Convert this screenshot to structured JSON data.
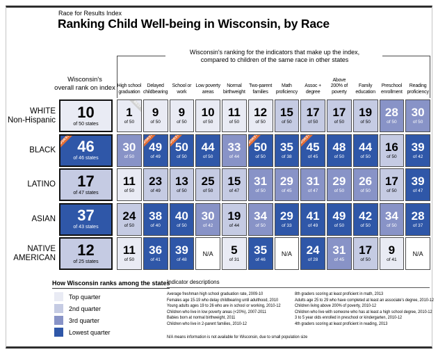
{
  "header": {
    "kicker": "Race for Results Index",
    "title": "Ranking Child Well-being in Wisconsin, by Race"
  },
  "subtitle": {
    "line1": "Wisconsin's ranking for the indicators that make up the index,",
    "line2": "compared to children of the same race in other states"
  },
  "chart_data": {
    "type": "heatmap",
    "title": "Ranking Child Well-being in Wisconsin, by Race",
    "overall_header_line1": "Wisconsin's",
    "overall_header_line2": "overall rank on index",
    "quarter_colors": {
      "top": "#e9ebf4",
      "second": "#c5cbe3",
      "third": "#8893c7",
      "lowest": "#2f57a8"
    },
    "columns": [
      "High school graduation",
      "Delayed childbearing",
      "School or work",
      "Low poverty areas",
      "Normal birthweight",
      "Two-parent families",
      "Math proficiency",
      "Assoc + degree",
      "Above 200% of poverty",
      "Family education",
      "Preschool enrollment",
      "Reading proficiency"
    ],
    "rows": [
      {
        "label": "WHITE\nNon-Hispanic",
        "overall": {
          "rank": "10",
          "of": "of 50 states",
          "quarter": "top"
        },
        "cells": [
          {
            "rank": "1",
            "of": "of 50",
            "quarter": "top",
            "ribbon": "BEST"
          },
          {
            "rank": "9",
            "of": "of 50",
            "quarter": "top"
          },
          {
            "rank": "9",
            "of": "of 50",
            "quarter": "top"
          },
          {
            "rank": "10",
            "of": "of 50",
            "quarter": "top"
          },
          {
            "rank": "11",
            "of": "of 50",
            "quarter": "top"
          },
          {
            "rank": "12",
            "of": "of 50",
            "quarter": "top"
          },
          {
            "rank": "15",
            "of": "of 50",
            "quarter": "second"
          },
          {
            "rank": "17",
            "of": "of 50",
            "quarter": "second"
          },
          {
            "rank": "17",
            "of": "of 50",
            "quarter": "second"
          },
          {
            "rank": "19",
            "of": "of 50",
            "quarter": "second"
          },
          {
            "rank": "28",
            "of": "of 50",
            "quarter": "third"
          },
          {
            "rank": "30",
            "of": "of 50",
            "quarter": "third"
          }
        ]
      },
      {
        "label": "BLACK",
        "overall": {
          "rank": "46",
          "of": "of 46 states",
          "quarter": "lowest",
          "ribbon": "WORST"
        },
        "cells": [
          {
            "rank": "30",
            "of": "of 50",
            "quarter": "third"
          },
          {
            "rank": "49",
            "of": "of 49",
            "quarter": "lowest",
            "ribbon": "WORST"
          },
          {
            "rank": "50",
            "of": "of 50",
            "quarter": "lowest",
            "ribbon": "WORST"
          },
          {
            "rank": "44",
            "of": "of 50",
            "quarter": "lowest"
          },
          {
            "rank": "33",
            "of": "of 44",
            "quarter": "third"
          },
          {
            "rank": "50",
            "of": "of 50",
            "quarter": "lowest",
            "ribbon": "WORST"
          },
          {
            "rank": "35",
            "of": "of 38",
            "quarter": "lowest"
          },
          {
            "rank": "45",
            "of": "of 45",
            "quarter": "lowest",
            "ribbon": "WORST"
          },
          {
            "rank": "48",
            "of": "of 50",
            "quarter": "lowest"
          },
          {
            "rank": "44",
            "of": "of 50",
            "quarter": "lowest"
          },
          {
            "rank": "16",
            "of": "of 50",
            "quarter": "second"
          },
          {
            "rank": "39",
            "of": "of 42",
            "quarter": "lowest"
          }
        ]
      },
      {
        "label": "LATINO",
        "overall": {
          "rank": "17",
          "of": "of 47 states",
          "quarter": "second"
        },
        "cells": [
          {
            "rank": "11",
            "of": "of 50",
            "quarter": "top"
          },
          {
            "rank": "23",
            "of": "of 49",
            "quarter": "second"
          },
          {
            "rank": "13",
            "of": "of 50",
            "quarter": "second"
          },
          {
            "rank": "25",
            "of": "of 50",
            "quarter": "second"
          },
          {
            "rank": "15",
            "of": "of 47",
            "quarter": "second"
          },
          {
            "rank": "31",
            "of": "of 50",
            "quarter": "third"
          },
          {
            "rank": "29",
            "of": "of 45",
            "quarter": "third"
          },
          {
            "rank": "31",
            "of": "of 47",
            "quarter": "third"
          },
          {
            "rank": "29",
            "of": "of 50",
            "quarter": "third"
          },
          {
            "rank": "26",
            "of": "of 50",
            "quarter": "third"
          },
          {
            "rank": "17",
            "of": "of 50",
            "quarter": "second"
          },
          {
            "rank": "39",
            "of": "of 47",
            "quarter": "lowest"
          }
        ]
      },
      {
        "label": "ASIAN",
        "overall": {
          "rank": "37",
          "of": "of 43 states",
          "quarter": "lowest"
        },
        "cells": [
          {
            "rank": "24",
            "of": "of 50",
            "quarter": "second"
          },
          {
            "rank": "38",
            "of": "of 40",
            "quarter": "lowest"
          },
          {
            "rank": "40",
            "of": "of 50",
            "quarter": "lowest"
          },
          {
            "rank": "30",
            "of": "of 42",
            "quarter": "third"
          },
          {
            "rank": "19",
            "of": "of 44",
            "quarter": "second"
          },
          {
            "rank": "34",
            "of": "of 50",
            "quarter": "third"
          },
          {
            "rank": "29",
            "of": "of 33",
            "quarter": "lowest"
          },
          {
            "rank": "41",
            "of": "of 49",
            "quarter": "lowest"
          },
          {
            "rank": "49",
            "of": "of 50",
            "quarter": "lowest"
          },
          {
            "rank": "42",
            "of": "of 50",
            "quarter": "lowest"
          },
          {
            "rank": "34",
            "of": "of 50",
            "quarter": "third"
          },
          {
            "rank": "28",
            "of": "of 37",
            "quarter": "lowest"
          }
        ]
      },
      {
        "label": "NATIVE\nAMERICAN",
        "overall": {
          "rank": "12",
          "of": "of 25 states",
          "quarter": "second"
        },
        "cells": [
          {
            "rank": "11",
            "of": "of 50",
            "quarter": "top"
          },
          {
            "rank": "36",
            "of": "of 41",
            "quarter": "lowest"
          },
          {
            "rank": "39",
            "of": "of 48",
            "quarter": "lowest"
          },
          {
            "rank": "N/A",
            "quarter": "na"
          },
          {
            "rank": "5",
            "of": "of 31",
            "quarter": "top"
          },
          {
            "rank": "35",
            "of": "of 46",
            "quarter": "lowest"
          },
          {
            "rank": "N/A",
            "quarter": "na"
          },
          {
            "rank": "24",
            "of": "of 28",
            "quarter": "lowest"
          },
          {
            "rank": "31",
            "of": "of 45",
            "quarter": "third"
          },
          {
            "rank": "17",
            "of": "of 50",
            "quarter": "second"
          },
          {
            "rank": "9",
            "of": "of 41",
            "quarter": "top"
          },
          {
            "rank": "N/A",
            "quarter": "na"
          }
        ]
      }
    ]
  },
  "legend": {
    "heading": "How Wisconsin ranks among the states",
    "items": [
      {
        "label": "Top quarter",
        "color": "#e9ebf4"
      },
      {
        "label": "2nd quarter",
        "color": "#c5cbe3"
      },
      {
        "label": "3rd quarter",
        "color": "#8893c7"
      },
      {
        "label": "Lowest quarter",
        "color": "#2f57a8"
      }
    ]
  },
  "descriptions": {
    "heading": "Indicator descriptions",
    "col1": [
      "Average freshman high school graduation rate, 2009-10",
      "Females age 15-19 who delay childbearing until adulthood, 2010",
      "Young adults ages 19 to 26 who are in school or working, 2010-12",
      "Children who live in low poverty areas (<20%), 2007-2011",
      "Babies born at normal birthweight, 2011",
      "Children who live in 2-parent families, 2010-12"
    ],
    "col2": [
      "8th graders scoring at least proficient in math, 2013",
      "Adults age 25 to 29 who have completed at least an associate's degree, 2010-12",
      "Children living above 200% of poverty, 2010-12",
      "Children who live with someone who has at least a high school degree, 2010-12",
      "3 to 5 year olds enrolled in preschool or kindergarten, 2010-12",
      "4th graders scoring at least proficient in reading, 2013"
    ],
    "note": "N/A means information is not available for Wisconsin, due to small population size"
  }
}
